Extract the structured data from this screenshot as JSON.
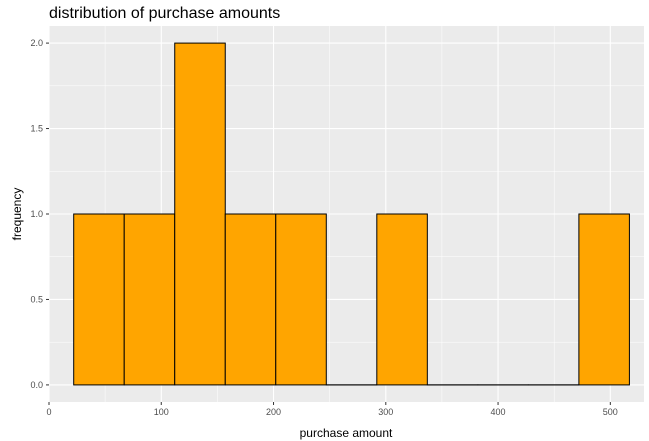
{
  "chart_data": {
    "type": "bar",
    "title": "distribution of purchase amounts",
    "xlabel": "purchase amount",
    "ylabel": "frequency",
    "xlim": [
      0,
      530
    ],
    "ylim": [
      -0.1,
      2.1
    ],
    "x_ticks": [
      0,
      100,
      200,
      300,
      400,
      500
    ],
    "x_tick_labels": [
      "0",
      "100",
      "200",
      "300",
      "400",
      "500"
    ],
    "y_ticks": [
      0,
      0.5,
      1,
      1.5,
      2
    ],
    "y_tick_labels": [
      "0.0",
      "0.5",
      "1.0",
      "1.5",
      "2.0"
    ],
    "bins": [
      {
        "start": 22,
        "end": 67,
        "count": 1
      },
      {
        "start": 67,
        "end": 112,
        "count": 1
      },
      {
        "start": 112,
        "end": 157,
        "count": 2
      },
      {
        "start": 157,
        "end": 202,
        "count": 1
      },
      {
        "start": 202,
        "end": 247,
        "count": 1
      },
      {
        "start": 247,
        "end": 292,
        "count": 0
      },
      {
        "start": 292,
        "end": 337,
        "count": 1
      },
      {
        "start": 337,
        "end": 382,
        "count": 0
      },
      {
        "start": 382,
        "end": 427,
        "count": 0
      },
      {
        "start": 427,
        "end": 472,
        "count": 0
      },
      {
        "start": 472,
        "end": 517,
        "count": 1
      }
    ],
    "bar_fill": "#FFA500",
    "bar_outline": "#000000",
    "panel_background": "#EBEBEB",
    "grid_color": "#FFFFFF",
    "grid": true
  }
}
